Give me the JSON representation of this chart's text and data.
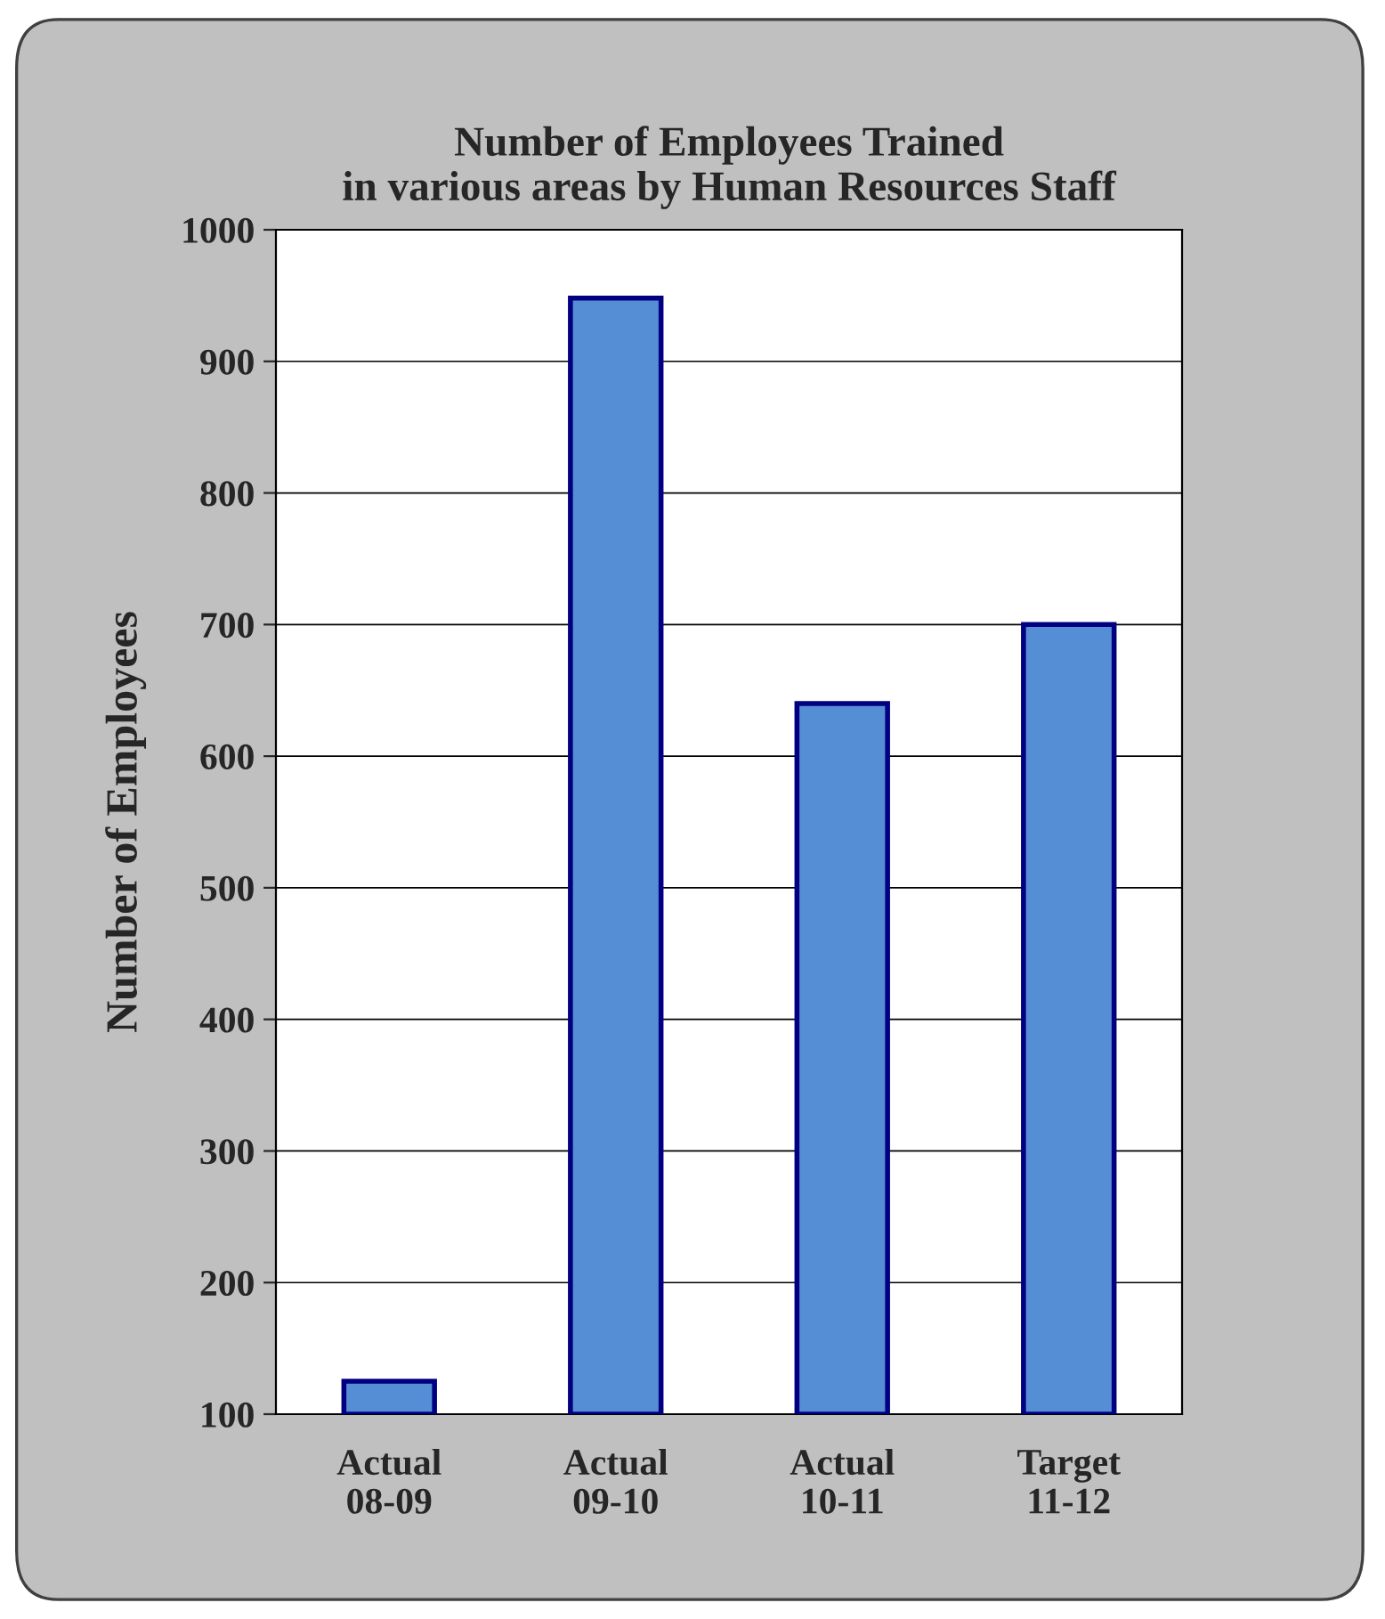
{
  "chart_data": {
    "type": "bar",
    "title": "Number of Employees Trained\nin various areas by Human Resources Staff",
    "ylabel": "Number of Employees",
    "categories": [
      "Actual\n08-09",
      "Actual\n09-10",
      "Actual\n10-11",
      "Target\n11-12"
    ],
    "values": [
      125,
      948,
      640,
      700
    ],
    "color": "#558ed5",
    "ylim": [
      100,
      1000
    ],
    "yticks": [
      100,
      200,
      300,
      400,
      500,
      600,
      700,
      800,
      900,
      1000
    ],
    "grid": "y",
    "legend": false
  }
}
